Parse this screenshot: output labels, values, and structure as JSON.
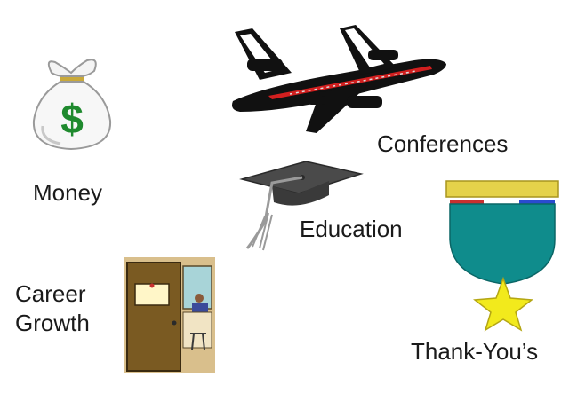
{
  "items": {
    "money": {
      "label": "Money",
      "icon": "money-bag-icon"
    },
    "conferences": {
      "label": "Conferences",
      "icon": "airplane-icon"
    },
    "education": {
      "label": "Education",
      "icon": "graduation-cap-icon"
    },
    "career": {
      "label_line1": "Career",
      "label_line2": "Growth",
      "icon": "office-door-icon"
    },
    "thanks": {
      "label": "Thank-You’s",
      "icon": "medal-icon"
    }
  },
  "colors": {
    "text": "#1a1a1a",
    "dollar_green": "#1f8a2e",
    "airplane_black": "#111111",
    "airplane_stripe": "#d21f1f",
    "cap_gray": "#4a4a4a",
    "tassel_gray": "#9a9a9a",
    "door_brown": "#7a5a22",
    "door_frame": "#d9bf8c",
    "medal_teal": "#0f8c8c",
    "ribbon_gold": "#e5d24a",
    "star_yellow": "#f2ea1c"
  }
}
